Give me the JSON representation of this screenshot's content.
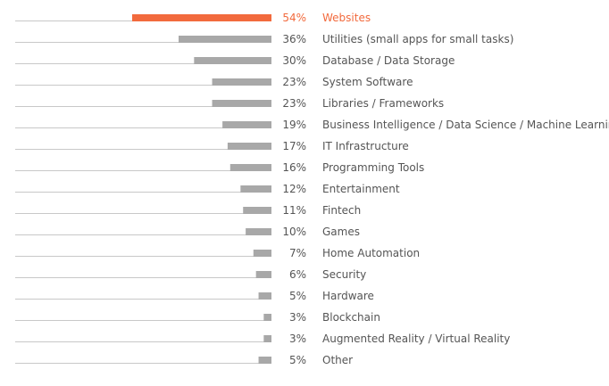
{
  "chart_data": {
    "type": "bar",
    "orientation": "horizontal",
    "categories": [
      "Websites",
      "Utilities (small apps for small tasks)",
      "Database / Data Storage",
      "System Software",
      "Libraries / Frameworks",
      "Business Intelligence / Data Science / Machine Learning",
      "IT Infrastructure",
      "Programming Tools",
      "Entertainment",
      "Fintech",
      "Games",
      "Home Automation",
      "Security",
      "Hardware",
      "Blockchain",
      "Augmented Reality / Virtual Reality",
      "Other"
    ],
    "values": [
      54,
      36,
      30,
      23,
      23,
      19,
      17,
      16,
      12,
      11,
      10,
      7,
      6,
      5,
      3,
      3,
      5
    ],
    "value_labels": [
      "54%",
      "36%",
      "30%",
      "23%",
      "23%",
      "19%",
      "17%",
      "16%",
      "12%",
      "11%",
      "10%",
      "7%",
      "6%",
      "5%",
      "3%",
      "3%",
      "5%"
    ],
    "unit": "%",
    "highlight_index": 0,
    "colors": {
      "highlight": "#f26a3d",
      "bar": "#a8a8a8",
      "baseline": "#c8c8c8",
      "text": "#555555"
    },
    "xlim": [
      0,
      54
    ],
    "title": "",
    "xlabel": "",
    "ylabel": ""
  }
}
